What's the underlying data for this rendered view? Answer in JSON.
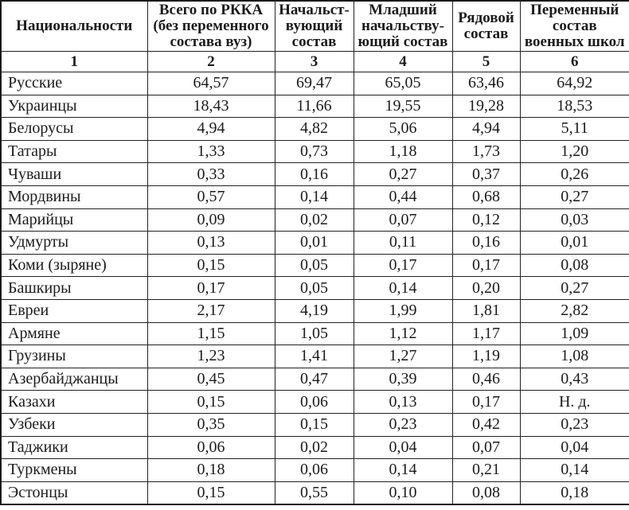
{
  "table": {
    "columns": [
      "Национальности",
      "Всего по РККА (без переменного состава вуз)",
      "Начальст-вующий состав",
      "Младший начальству-ющий состав",
      "Рядовой состав",
      "Переменный состав военных школ"
    ],
    "column_numbers": [
      "1",
      "2",
      "3",
      "4",
      "5",
      "6"
    ],
    "missing_data_label": "Н. д.",
    "rows": [
      {
        "name": "Русские",
        "values": [
          "64,57",
          "69,47",
          "65,05",
          "63,46",
          "64,92"
        ]
      },
      {
        "name": "Украинцы",
        "values": [
          "18,43",
          "11,66",
          "19,55",
          "19,28",
          "18,53"
        ]
      },
      {
        "name": "Белорусы",
        "values": [
          "4,94",
          "4,82",
          "5,06",
          "4,94",
          "5,11"
        ]
      },
      {
        "name": "Татары",
        "values": [
          "1,33",
          "0,73",
          "1,18",
          "1,73",
          "1,20"
        ]
      },
      {
        "name": "Чуваши",
        "values": [
          "0,33",
          "0,16",
          "0,27",
          "0,37",
          "0,26"
        ]
      },
      {
        "name": "Мордвины",
        "values": [
          "0,57",
          "0,14",
          "0,44",
          "0,68",
          "0,27"
        ]
      },
      {
        "name": "Марийцы",
        "values": [
          "0,09",
          "0,02",
          "0,07",
          "0,12",
          "0,03"
        ]
      },
      {
        "name": "Удмурты",
        "values": [
          "0,13",
          "0,01",
          "0,11",
          "0,16",
          "0,01"
        ]
      },
      {
        "name": "Коми (зыряне)",
        "values": [
          "0,15",
          "0,05",
          "0,17",
          "0,17",
          "0,08"
        ]
      },
      {
        "name": "Башкиры",
        "values": [
          "0,17",
          "0,05",
          "0,14",
          "0,20",
          "0,27"
        ]
      },
      {
        "name": "Евреи",
        "values": [
          "2,17",
          "4,19",
          "1,99",
          "1,81",
          "2,82"
        ]
      },
      {
        "name": "Армяне",
        "values": [
          "1,15",
          "1,05",
          "1,12",
          "1,17",
          "1,09"
        ]
      },
      {
        "name": "Грузины",
        "values": [
          "1,23",
          "1,41",
          "1,27",
          "1,19",
          "1,08"
        ]
      },
      {
        "name": "Азербайджанцы",
        "values": [
          "0,45",
          "0,47",
          "0,39",
          "0,46",
          "0,43"
        ]
      },
      {
        "name": "Казахи",
        "values": [
          "0,15",
          "0,06",
          "0,13",
          "0,17",
          "Н. д."
        ]
      },
      {
        "name": "Узбеки",
        "values": [
          "0,35",
          "0,15",
          "0,23",
          "0,42",
          "0,23"
        ]
      },
      {
        "name": "Таджики",
        "values": [
          "0,06",
          "0,02",
          "0,04",
          "0,07",
          "0,04"
        ]
      },
      {
        "name": "Туркмены",
        "values": [
          "0,18",
          "0,06",
          "0,14",
          "0,21",
          "0,14"
        ]
      },
      {
        "name": "Эстонцы",
        "values": [
          "0,15",
          "0,55",
          "0,10",
          "0,08",
          "0,18"
        ]
      }
    ]
  }
}
